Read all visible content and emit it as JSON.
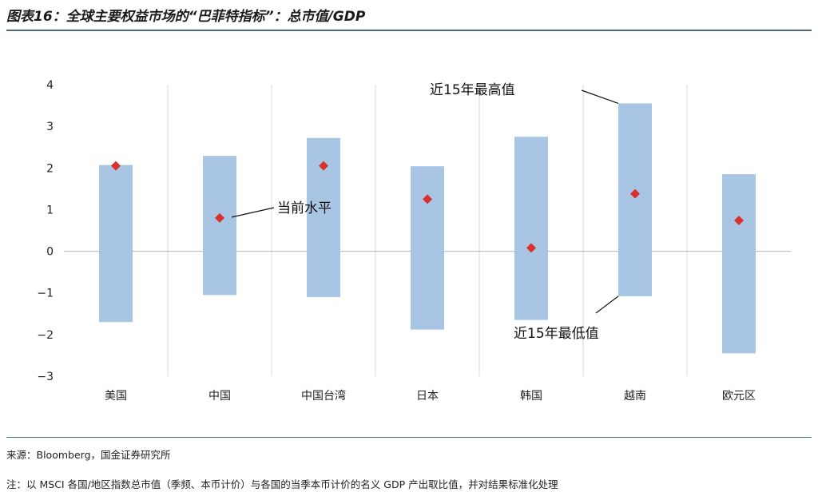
{
  "header": {
    "title": "图表16：全球主要权益市场的“巴菲特指标”：总市值/GDP"
  },
  "chart_data": {
    "type": "range-bar",
    "categories": [
      "美国",
      "中国",
      "中国台湾",
      "日本",
      "韩国",
      "越南",
      "欧元区"
    ],
    "series": [
      {
        "name": "近15年最低值",
        "values": [
          -1.7,
          -1.05,
          -1.1,
          -1.88,
          -1.65,
          -1.08,
          -2.45
        ]
      },
      {
        "name": "近15年最高值",
        "values": [
          2.07,
          2.29,
          2.72,
          2.04,
          2.75,
          3.55,
          1.85
        ]
      },
      {
        "name": "当前水平",
        "values": [
          2.05,
          0.8,
          2.05,
          1.25,
          0.08,
          1.38,
          0.74
        ]
      }
    ],
    "yticks": [
      "4",
      "3",
      "2",
      "1",
      "0",
      "−1",
      "−2",
      "−3"
    ],
    "ylim": [
      -3,
      4
    ],
    "annotations": {
      "high": "近15年最高值",
      "low": "近15年最低值",
      "current": "当前水平"
    },
    "grid": "vertical",
    "colors": {
      "bar": "#a8c5e3",
      "marker": "#d9302c",
      "zero_line": "#bfbfbf",
      "grid": "#d9d9d9"
    }
  },
  "footer": {
    "source": "来源：Bloomberg，国金证券研究所",
    "note": "注：以 MSCI 各国/地区指数总市值（季频、本币计价）与各国的当季本币计价的名义 GDP 产出取比值，并对结果标准化处理"
  }
}
